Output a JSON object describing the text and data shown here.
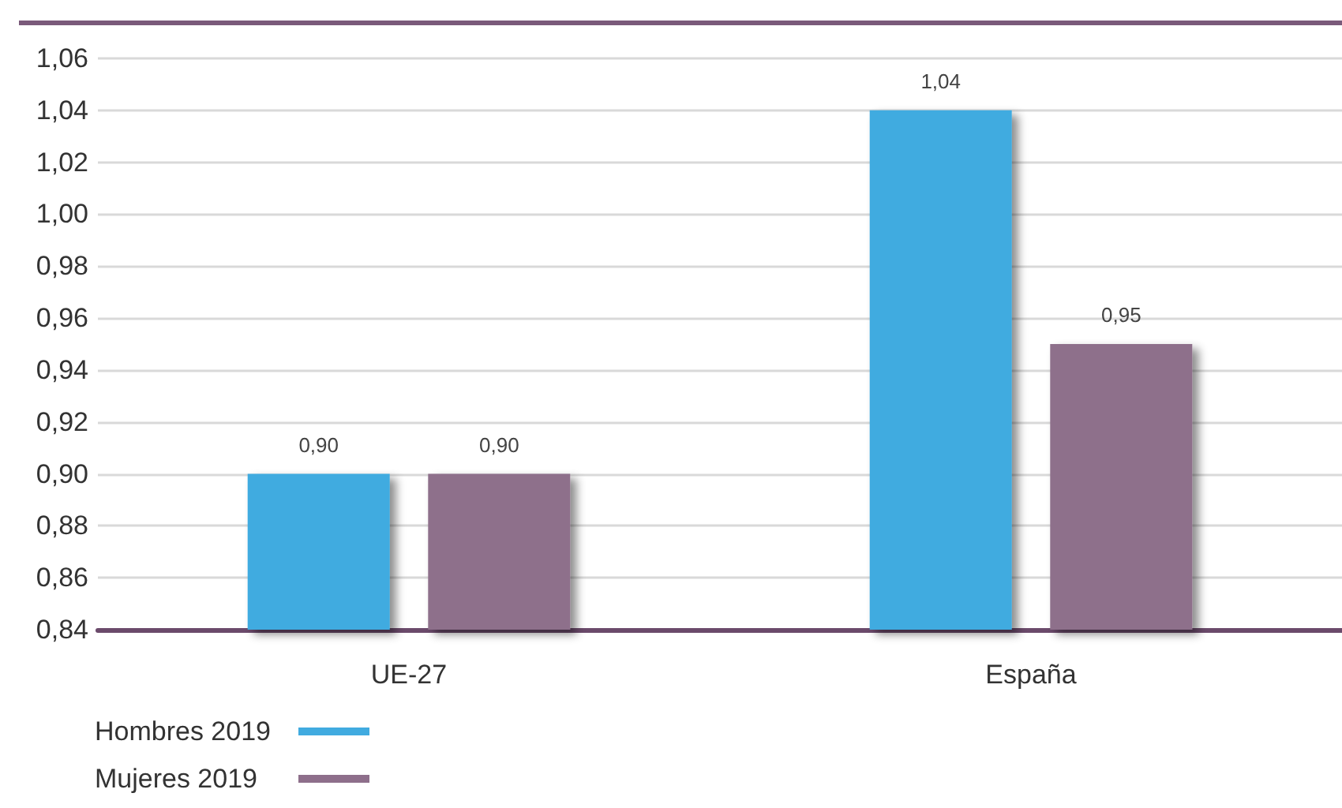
{
  "chart_data": {
    "type": "bar",
    "categories": [
      "UE-27",
      "España"
    ],
    "series": [
      {
        "name": "Hombres 2019",
        "color": "#41abe0",
        "values": [
          0.9,
          1.04
        ],
        "value_labels": [
          "0,90",
          "1,04"
        ]
      },
      {
        "name": "Mujeres 2019",
        "color": "#8e6f8b",
        "values": [
          0.9,
          0.95
        ],
        "value_labels": [
          "0,90",
          "0,95"
        ]
      }
    ],
    "ylim": [
      0.84,
      1.06
    ],
    "yticks": [
      {
        "value": 0.84,
        "label": "0,84"
      },
      {
        "value": 0.86,
        "label": "0,86"
      },
      {
        "value": 0.88,
        "label": "0,88"
      },
      {
        "value": 0.9,
        "label": "0,90"
      },
      {
        "value": 0.92,
        "label": "0,92"
      },
      {
        "value": 0.94,
        "label": "0,94"
      },
      {
        "value": 0.96,
        "label": "0,96"
      },
      {
        "value": 0.98,
        "label": "0,98"
      },
      {
        "value": 1.0,
        "label": "1,00"
      },
      {
        "value": 1.02,
        "label": "1,02"
      },
      {
        "value": 1.04,
        "label": "1,04"
      },
      {
        "value": 1.06,
        "label": "1,06"
      }
    ],
    "grid": "y",
    "legend": "bottom left"
  }
}
